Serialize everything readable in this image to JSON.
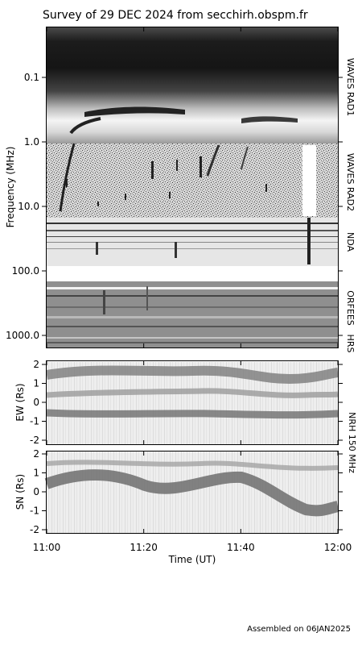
{
  "title": "Survey of 29 DEC 2024 from secchirh.obspm.fr",
  "footer": "Assembled on 06JAN2025",
  "chart_data": [
    {
      "type": "heatmap",
      "name": "dynamic-spectrum",
      "ylabel": "Frequency (MHz)",
      "yscale": "log",
      "ylim": [
        0.02,
        2000
      ],
      "y_ticks": [
        "0.1",
        "1.0",
        "10.0",
        "100.0",
        "1000.0"
      ],
      "y_tick_values": [
        0.1,
        1,
        10,
        100,
        1000
      ],
      "bands": [
        {
          "label": "WAVES RAD1",
          "range_mhz": [
            0.02,
            1.0
          ]
        },
        {
          "label": "WAVES RAD2",
          "range_mhz": [
            1.0,
            14.0
          ]
        },
        {
          "label": "NDA",
          "range_mhz": [
            14.0,
            80.0
          ]
        },
        {
          "label": "ORFEES",
          "range_mhz": [
            144.0,
            1004.0
          ]
        },
        {
          "label": "HRS",
          "range_mhz": [
            1004.0,
            1700.0
          ]
        }
      ]
    },
    {
      "type": "heatmap",
      "name": "nrh-ew",
      "ylabel": "EW (Rs)",
      "ylim": [
        -2,
        2
      ],
      "y_ticks": [
        "2",
        "1",
        "0",
        "-1",
        "-2"
      ],
      "instrument": "NRH 150 MHz"
    },
    {
      "type": "heatmap",
      "name": "nrh-sn",
      "ylabel": "SN (Rs)",
      "ylim": [
        -2,
        2
      ],
      "y_ticks": [
        "2",
        "1",
        "0",
        "-1",
        "-2"
      ]
    }
  ],
  "x_axis": {
    "label": "Time (UT)",
    "ticks": [
      "11:00",
      "11:20",
      "11:40",
      "12:00"
    ],
    "tick_minutes": [
      0,
      20,
      40,
      60
    ],
    "range_minutes": [
      0,
      60
    ]
  }
}
